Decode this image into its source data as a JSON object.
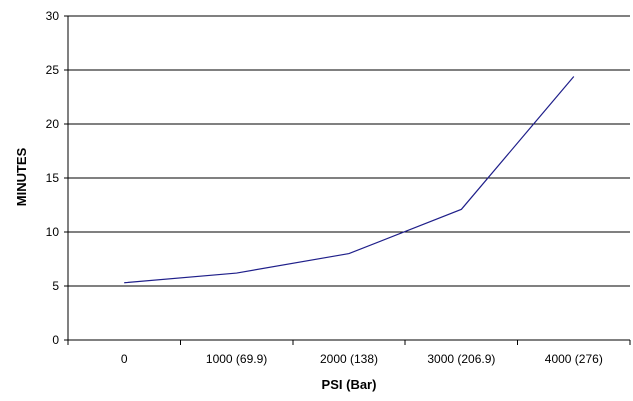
{
  "chart_data": {
    "type": "line",
    "title": "",
    "xlabel": "PSI (Bar)",
    "ylabel": "MINUTES",
    "categories": [
      "0",
      "1000 (69.9)",
      "2000 (138)",
      "3000 (206.9)",
      "4000 (276)"
    ],
    "series": [
      {
        "values": [
          5.3,
          6.2,
          8.0,
          12.1,
          24.4
        ]
      }
    ],
    "ylim": [
      0,
      30
    ],
    "yticks": [
      0,
      5,
      10,
      15,
      20,
      25,
      30
    ],
    "grid": true,
    "legend": "none",
    "colors": {
      "line": "#1f1f8a",
      "grid": "#000000",
      "axis": "#000000"
    }
  }
}
